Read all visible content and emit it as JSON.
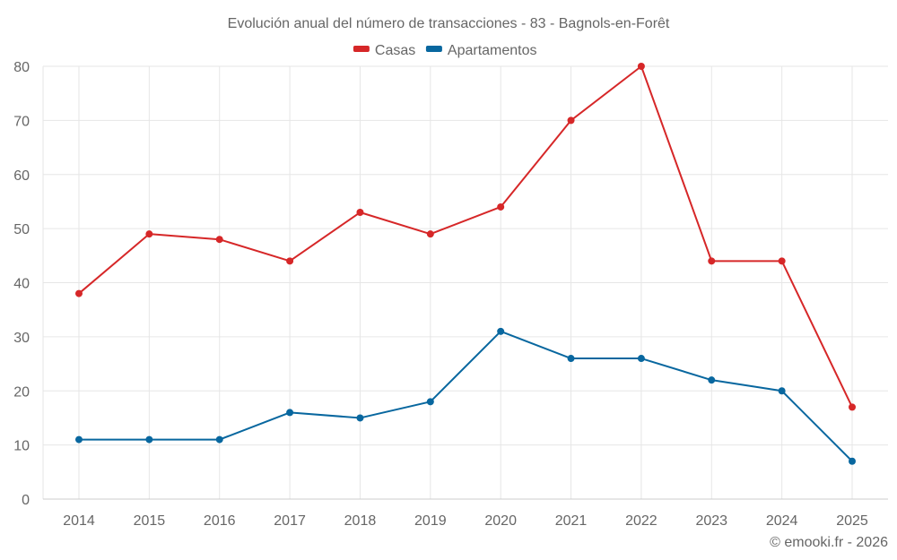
{
  "chart_data": {
    "type": "line",
    "title": "Evolución anual del número de transacciones - 83 - Bagnols-en-Forêt",
    "xlabel": "",
    "ylabel": "",
    "categories": [
      "2014",
      "2015",
      "2016",
      "2017",
      "2018",
      "2019",
      "2020",
      "2021",
      "2022",
      "2023",
      "2024",
      "2025"
    ],
    "ylim": [
      0,
      80
    ],
    "yticks": [
      0,
      10,
      20,
      30,
      40,
      50,
      60,
      70,
      80
    ],
    "grid": true,
    "legend_position": "top-center",
    "series": [
      {
        "name": "Casas",
        "color": "#d62728",
        "values": [
          38,
          49,
          48,
          44,
          53,
          49,
          54,
          70,
          80,
          44,
          44,
          17
        ]
      },
      {
        "name": "Apartamentos",
        "color": "#08679f",
        "values": [
          11,
          11,
          11,
          16,
          15,
          18,
          31,
          26,
          26,
          22,
          20,
          7
        ]
      }
    ],
    "credit": "© emooki.fr - 2026"
  }
}
